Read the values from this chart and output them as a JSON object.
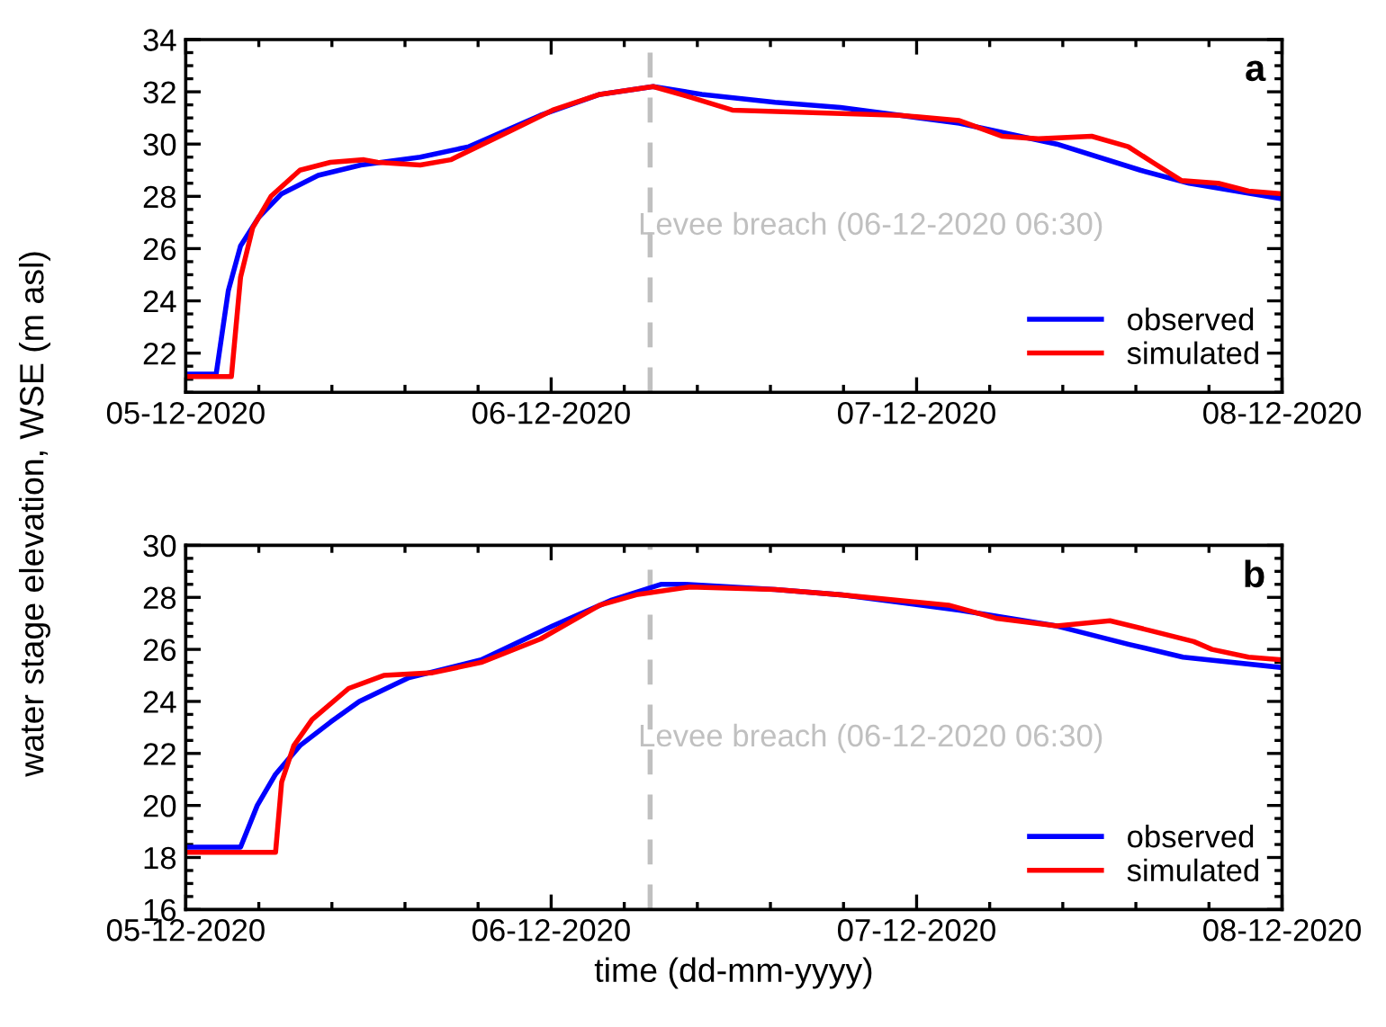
{
  "chart_data": [
    {
      "type": "line",
      "ylabel": "water stage elevation, WSE (m asl)",
      "annotations": [
        "a"
      ],
      "xlim": [
        "2020-12-05",
        "2020-12-08"
      ],
      "xticks": [
        {
          "value": "2020-12-05",
          "label": "05-12-2020"
        },
        {
          "value": "2020-12-06",
          "label": "06-12-2020"
        },
        {
          "value": "2020-12-07",
          "label": "07-12-2020"
        },
        {
          "value": "2020-12-08",
          "label": "08-12-2020"
        }
      ],
      "ylim": [
        20.5,
        34
      ],
      "yticks": [
        22,
        24,
        26,
        28,
        30,
        32,
        34
      ],
      "ref_lines": [
        {
          "axis": "x",
          "value": "2020-12-06T06:30",
          "label": "Levee breach (06-12-2020 06:30)",
          "color": "#c0c0c0",
          "line_style": "dashed"
        }
      ],
      "legend": "bottom right",
      "series": [
        {
          "name": "observed",
          "color": "#0000ff",
          "x": [
            "2020-12-05T00:00",
            "2020-12-05T02:00",
            "2020-12-05T02:48",
            "2020-12-05T03:36",
            "2020-12-05T04:48",
            "2020-12-05T06:18",
            "2020-12-05T08:42",
            "2020-12-05T11:30",
            "2020-12-05T15:24",
            "2020-12-05T18:36",
            "2020-12-05T23:18",
            "2020-12-06T03:12",
            "2020-12-06T06:42",
            "2020-12-06T09:54",
            "2020-12-06T14:42",
            "2020-12-06T19:00",
            "2020-12-07T02:48",
            "2020-12-07T09:12",
            "2020-12-07T14:42",
            "2020-12-07T17:54",
            "2020-12-08T00:00"
          ],
          "values": [
            21.2,
            21.2,
            24.4,
            26.1,
            27.2,
            28.1,
            28.8,
            29.2,
            29.5,
            29.9,
            31.1,
            31.9,
            32.2,
            31.9,
            31.6,
            31.4,
            30.8,
            30.0,
            29.0,
            28.5,
            27.9
          ]
        },
        {
          "name": "simulated",
          "color": "#ff0000",
          "x": [
            "2020-12-05T00:00",
            "2020-12-05T03:00",
            "2020-12-05T03:36",
            "2020-12-05T04:24",
            "2020-12-05T05:36",
            "2020-12-05T07:30",
            "2020-12-05T09:30",
            "2020-12-05T11:42",
            "2020-12-05T12:36",
            "2020-12-05T15:24",
            "2020-12-05T17:24",
            "2020-12-05T21:18",
            "2020-12-06T00:06",
            "2020-12-06T03:12",
            "2020-12-06T06:42",
            "2020-12-06T09:06",
            "2020-12-06T11:54",
            "2020-12-06T22:54",
            "2020-12-07T02:48",
            "2020-12-07T05:36",
            "2020-12-07T08:00",
            "2020-12-07T11:30",
            "2020-12-07T13:54",
            "2020-12-07T15:30",
            "2020-12-07T17:24",
            "2020-12-07T19:48",
            "2020-12-07T21:48",
            "2020-12-08T00:00"
          ],
          "values": [
            21.1,
            21.1,
            24.9,
            26.8,
            28.0,
            29.0,
            29.3,
            29.4,
            29.3,
            29.2,
            29.4,
            30.5,
            31.3,
            31.9,
            32.2,
            31.8,
            31.3,
            31.1,
            30.9,
            30.3,
            30.2,
            30.3,
            29.9,
            29.3,
            28.6,
            28.5,
            28.2,
            28.1
          ]
        }
      ]
    },
    {
      "type": "line",
      "xlabel": "time (dd-mm-yyyy)",
      "annotations": [
        "b"
      ],
      "xlim": [
        "2020-12-05",
        "2020-12-08"
      ],
      "xticks": [
        {
          "value": "2020-12-05",
          "label": "05-12-2020"
        },
        {
          "value": "2020-12-06",
          "label": "06-12-2020"
        },
        {
          "value": "2020-12-07",
          "label": "07-12-2020"
        },
        {
          "value": "2020-12-08",
          "label": "08-12-2020"
        }
      ],
      "ylim": [
        16,
        30
      ],
      "yticks": [
        16,
        18,
        20,
        22,
        24,
        26,
        28,
        30
      ],
      "ref_lines": [
        {
          "axis": "x",
          "value": "2020-12-06T06:30",
          "label": "Levee breach (06-12-2020 06:30)",
          "color": "#c0c0c0",
          "line_style": "dashed"
        }
      ],
      "legend": "bottom right",
      "series": [
        {
          "name": "observed",
          "color": "#0000ff",
          "x": [
            "2020-12-05T00:00",
            "2020-12-05T03:36",
            "2020-12-05T04:42",
            "2020-12-05T05:54",
            "2020-12-05T07:30",
            "2020-12-05T09:30",
            "2020-12-05T11:24",
            "2020-12-05T14:36",
            "2020-12-05T19:24",
            "2020-12-06T00:06",
            "2020-12-06T04:00",
            "2020-12-06T07:12",
            "2020-12-06T08:48",
            "2020-12-06T14:42",
            "2020-12-06T19:00",
            "2020-12-07T02:54",
            "2020-12-07T09:12",
            "2020-12-07T13:54",
            "2020-12-07T17:30",
            "2020-12-08T00:00"
          ],
          "values": [
            18.4,
            18.4,
            20.0,
            21.2,
            22.3,
            23.2,
            24.0,
            24.9,
            25.6,
            26.9,
            27.9,
            28.5,
            28.5,
            28.3,
            28.1,
            27.5,
            26.9,
            26.2,
            25.7,
            25.3
          ]
        },
        {
          "name": "simulated",
          "color": "#ff0000",
          "x": [
            "2020-12-05T00:00",
            "2020-12-05T05:54",
            "2020-12-05T06:18",
            "2020-12-05T07:06",
            "2020-12-05T08:18",
            "2020-12-05T10:42",
            "2020-12-05T13:00",
            "2020-12-05T16:12",
            "2020-12-05T19:24",
            "2020-12-05T23:18",
            "2020-12-06T03:12",
            "2020-12-06T05:36",
            "2020-12-06T09:06",
            "2020-12-06T14:42",
            "2020-12-06T19:00",
            "2020-12-07T02:06",
            "2020-12-07T05:12",
            "2020-12-07T09:12",
            "2020-12-07T12:42",
            "2020-12-07T15:30",
            "2020-12-07T18:12",
            "2020-12-07T19:24",
            "2020-12-07T21:48",
            "2020-12-08T00:00"
          ],
          "values": [
            18.2,
            18.2,
            20.9,
            22.3,
            23.3,
            24.5,
            25.0,
            25.1,
            25.5,
            26.4,
            27.7,
            28.1,
            28.4,
            28.3,
            28.1,
            27.7,
            27.2,
            26.9,
            27.1,
            26.7,
            26.3,
            26.0,
            25.7,
            25.6
          ]
        }
      ]
    }
  ]
}
